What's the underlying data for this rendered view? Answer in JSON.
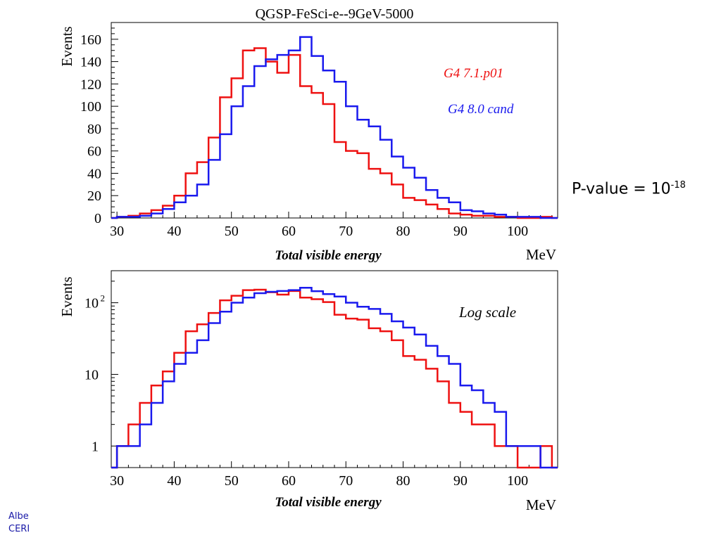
{
  "pvalue": {
    "label": "P-value = 10",
    "exponent": "-18"
  },
  "footer": {
    "line1": "Albe",
    "line2": "CERI"
  },
  "legend": {
    "series1": "G4 7.1.p01",
    "series2": "G4 8.0 cand"
  },
  "annotation_log": "Log scale",
  "colors": {
    "series1": "#ee1111",
    "series2": "#1a1aee",
    "axis": "#000000"
  },
  "chart_data": [
    {
      "type": "line",
      "title": "QGSP-FeSci-e--9GeV-5000",
      "xlabel": "Total visible energy",
      "xunit": "MeV",
      "ylabel": "Events",
      "xlim": [
        29,
        107
      ],
      "ylim": [
        0,
        175
      ],
      "yscale": "linear",
      "xticks": [
        30,
        40,
        50,
        60,
        70,
        80,
        90,
        100
      ],
      "yticks": [
        0,
        20,
        40,
        60,
        80,
        100,
        120,
        140,
        160
      ],
      "legend": "top-right",
      "series": [
        {
          "name": "G4 7.1.p01",
          "color": "#ee1111",
          "x": [
            29,
            31,
            33,
            35,
            37,
            39,
            41,
            43,
            45,
            47,
            49,
            51,
            53,
            55,
            57,
            59,
            61,
            63,
            65,
            67,
            69,
            71,
            73,
            75,
            77,
            79,
            81,
            83,
            85,
            87,
            89,
            91,
            93,
            95,
            97,
            99,
            101,
            103,
            105,
            107
          ],
          "y": [
            0,
            1,
            2,
            4,
            7,
            11,
            20,
            40,
            50,
            72,
            108,
            125,
            150,
            152,
            140,
            130,
            146,
            118,
            112,
            102,
            68,
            60,
            58,
            44,
            40,
            30,
            18,
            16,
            12,
            8,
            4,
            3,
            2,
            2,
            1,
            1,
            0,
            0,
            1,
            0
          ]
        },
        {
          "name": "G4 8.0 cand",
          "color": "#1a1aee",
          "x": [
            29,
            31,
            33,
            35,
            37,
            39,
            41,
            43,
            45,
            47,
            49,
            51,
            53,
            55,
            57,
            59,
            61,
            63,
            65,
            67,
            69,
            71,
            73,
            75,
            77,
            79,
            81,
            83,
            85,
            87,
            89,
            91,
            93,
            95,
            97,
            99,
            101,
            103,
            105,
            107
          ],
          "y": [
            0,
            1,
            1,
            2,
            4,
            8,
            14,
            20,
            30,
            52,
            75,
            100,
            118,
            136,
            142,
            146,
            150,
            162,
            145,
            132,
            122,
            100,
            88,
            82,
            70,
            55,
            45,
            36,
            25,
            18,
            14,
            7,
            6,
            4,
            3,
            1,
            1,
            1,
            0,
            0
          ]
        }
      ]
    },
    {
      "type": "line",
      "title": "",
      "xlabel": "Total visible energy",
      "xunit": "MeV",
      "ylabel": "Events",
      "xlim": [
        29,
        107
      ],
      "ylim": [
        0.5,
        280
      ],
      "yscale": "log",
      "xticks": [
        30,
        40,
        50,
        60,
        70,
        80,
        90,
        100
      ],
      "yticks": [
        1,
        10,
        100
      ],
      "ytick_labels": [
        "1",
        "10",
        "10 2"
      ],
      "series": [
        {
          "name": "G4 7.1.p01",
          "color": "#ee1111",
          "x": [
            29,
            31,
            33,
            35,
            37,
            39,
            41,
            43,
            45,
            47,
            49,
            51,
            53,
            55,
            57,
            59,
            61,
            63,
            65,
            67,
            69,
            71,
            73,
            75,
            77,
            79,
            81,
            83,
            85,
            87,
            89,
            91,
            93,
            95,
            97,
            99,
            101,
            103,
            105,
            107
          ],
          "y": [
            0.5,
            1,
            2,
            4,
            7,
            11,
            20,
            40,
            50,
            72,
            108,
            125,
            150,
            152,
            140,
            130,
            146,
            118,
            112,
            102,
            68,
            60,
            58,
            44,
            40,
            30,
            18,
            16,
            12,
            8,
            4,
            3,
            2,
            2,
            1,
            1,
            0.5,
            0.5,
            1,
            0.5
          ]
        },
        {
          "name": "G4 8.0 cand",
          "color": "#1a1aee",
          "x": [
            29,
            31,
            33,
            35,
            37,
            39,
            41,
            43,
            45,
            47,
            49,
            51,
            53,
            55,
            57,
            59,
            61,
            63,
            65,
            67,
            69,
            71,
            73,
            75,
            77,
            79,
            81,
            83,
            85,
            87,
            89,
            91,
            93,
            95,
            97,
            99,
            101,
            103,
            105,
            107
          ],
          "y": [
            0.5,
            1,
            1,
            2,
            4,
            8,
            14,
            20,
            30,
            52,
            75,
            100,
            118,
            136,
            142,
            146,
            150,
            162,
            145,
            132,
            122,
            100,
            88,
            82,
            70,
            55,
            45,
            36,
            25,
            18,
            14,
            7,
            6,
            4,
            3,
            1,
            1,
            1,
            0.5,
            0.5
          ]
        }
      ]
    }
  ]
}
